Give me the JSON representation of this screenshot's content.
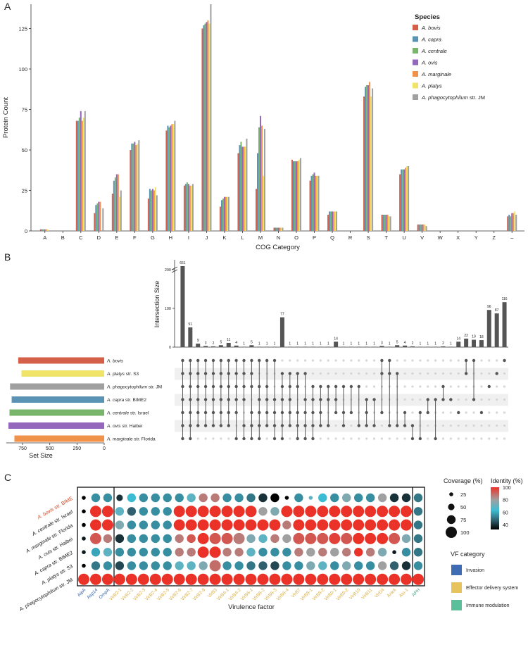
{
  "colors": {
    "species": [
      "#d5604a",
      "#5b93b4",
      "#79b56a",
      "#9467bd",
      "#f0924a",
      "#f0e36a",
      "#a0a0a0"
    ],
    "setbar": [
      "#d5604a",
      "#f0e36a",
      "#a0a0a0",
      "#5b93b4",
      "#79b56a",
      "#9467bd",
      "#f0924a"
    ],
    "vfcat": [
      "#3f6bb5",
      "#e6c35c",
      "#5bbf9a"
    ],
    "vfcat_label_colors": [
      "#3a66b0",
      "#d9b048",
      "#4aa88a"
    ],
    "highlight_red": "#d14a28"
  },
  "chart_data": [
    {
      "panel": "A",
      "type": "bar",
      "title": "",
      "xlabel": "COG Category",
      "ylabel": "Protein Count",
      "ylim": [
        0,
        140
      ],
      "yticks": [
        0,
        25,
        50,
        75,
        100,
        125
      ],
      "categories": [
        "A",
        "B",
        "C",
        "D",
        "E",
        "F",
        "G",
        "H",
        "I",
        "J",
        "K",
        "L",
        "M",
        "N",
        "O",
        "P",
        "Q",
        "R",
        "S",
        "T",
        "U",
        "V",
        "W",
        "X",
        "Y",
        "Z",
        "–"
      ],
      "legend_title": "Species",
      "series": [
        {
          "name": "A. bovis",
          "values": [
            1,
            0,
            68,
            11,
            23,
            50,
            20,
            62,
            28,
            125,
            15,
            48,
            26,
            2,
            44,
            31,
            10,
            0,
            83,
            10,
            35,
            4,
            0,
            0,
            0,
            0,
            9
          ]
        },
        {
          "name": "A. capra",
          "values": [
            1,
            0,
            68,
            16,
            31,
            54,
            26,
            65,
            29,
            127,
            19,
            53,
            48,
            2,
            43,
            34,
            12,
            0,
            89,
            10,
            38,
            4,
            0,
            0,
            0,
            0,
            10
          ]
        },
        {
          "name": "A. centrale",
          "values": [
            1,
            0,
            70,
            17,
            33,
            54,
            25,
            64,
            30,
            128,
            20,
            55,
            64,
            2,
            43,
            35,
            12,
            0,
            90,
            10,
            38,
            4,
            0,
            0,
            0,
            0,
            9
          ]
        },
        {
          "name": "A. ovis",
          "values": [
            1,
            0,
            74,
            18,
            35,
            55,
            26,
            65,
            29,
            129,
            21,
            52,
            71,
            2,
            43,
            36,
            12,
            0,
            90,
            10,
            38,
            4,
            0,
            0,
            0,
            0,
            11
          ]
        },
        {
          "name": "A. marginale",
          "values": [
            1,
            0,
            68,
            18,
            35,
            53,
            25,
            66,
            28,
            130,
            21,
            52,
            65,
            2,
            43,
            34,
            12,
            0,
            92,
            10,
            39,
            4,
            0,
            0,
            0,
            0,
            11
          ]
        },
        {
          "name": "A. platys",
          "values": [
            1,
            0,
            70,
            0,
            21,
            54,
            27,
            66,
            28,
            128,
            21,
            52,
            34,
            2,
            44,
            34,
            12,
            0,
            83,
            9,
            40,
            4,
            0,
            0,
            0,
            0,
            12
          ]
        },
        {
          "name": "A. phagocytophilum str. JM",
          "values": [
            0,
            0,
            74,
            14,
            25,
            56,
            22,
            68,
            29,
            140,
            21,
            57,
            63,
            2,
            45,
            34,
            12,
            0,
            88,
            9,
            40,
            3,
            0,
            0,
            0,
            0,
            10
          ]
        }
      ]
    },
    {
      "panel": "B",
      "type": "upset",
      "ylabel": "Intersection Size",
      "axis_break_label": "651",
      "yticks": [
        0,
        100,
        200
      ],
      "intersection_sizes": [
        651,
        51,
        9,
        3,
        2,
        5,
        11,
        4,
        1,
        5,
        1,
        1,
        1,
        77,
        1,
        1,
        1,
        1,
        1,
        1,
        14,
        1,
        1,
        1,
        1,
        1,
        3,
        1,
        5,
        4,
        2,
        1,
        1,
        1,
        2,
        1,
        14,
        22,
        19,
        18,
        96,
        87,
        116
      ],
      "set_names": [
        {
          "sp": "A. bovis",
          "str": ""
        },
        {
          "sp": "A. platys",
          "str": " str. S3"
        },
        {
          "sp": "A. phagocytophilum",
          "str": " str. JM"
        },
        {
          "sp": "A. capra",
          "str": " str. BIME2"
        },
        {
          "sp": "A. centrale",
          "str": " str. Israel"
        },
        {
          "sp": "A. ovis",
          "str": " str. Haibei"
        },
        {
          "sp": "A. marginale",
          "str": " str. Florida"
        }
      ],
      "set_sizes": [
        790,
        760,
        865,
        850,
        870,
        880,
        825
      ],
      "set_size_ticks": [
        750,
        500,
        250,
        0
      ],
      "set_size_label": "Set Size",
      "matrix": [
        [
          0,
          1,
          2,
          3,
          4,
          5,
          6
        ],
        [
          0,
          1,
          2,
          3,
          4,
          5,
          6
        ],
        [
          0,
          1,
          2,
          3,
          4,
          5
        ],
        [
          0,
          1,
          2,
          3,
          4,
          5
        ],
        [
          0,
          1,
          2,
          3,
          4,
          5
        ],
        [
          0,
          1,
          2,
          3,
          4,
          5
        ],
        [
          0,
          1,
          2,
          3,
          4,
          5
        ],
        [
          0,
          1,
          2,
          3,
          4,
          6
        ],
        [
          0,
          1,
          2,
          3,
          5,
          6
        ],
        [
          0,
          1,
          2,
          4,
          5,
          6
        ],
        [
          0,
          2,
          3,
          4,
          5,
          6
        ],
        [
          0,
          2,
          3,
          4,
          5
        ],
        [
          0,
          3,
          4,
          5,
          6
        ],
        [
          1,
          2,
          3,
          4,
          5,
          6
        ],
        [
          1,
          2,
          3,
          4,
          5
        ],
        [
          1,
          2,
          4,
          5,
          6
        ],
        [
          1,
          3,
          4,
          5,
          6
        ],
        [
          2,
          3,
          4,
          5,
          6
        ],
        [
          2,
          3,
          4,
          5
        ],
        [
          2,
          3,
          5
        ],
        [
          2,
          3,
          4
        ],
        [
          2,
          4,
          5
        ],
        [
          2,
          4
        ],
        [
          2,
          5
        ],
        [
          3,
          4,
          5
        ],
        [
          3,
          5
        ],
        [
          0,
          1,
          4
        ],
        [
          0,
          1,
          5
        ],
        [
          1,
          5
        ],
        [
          4,
          5
        ],
        [
          5,
          6
        ],
        [
          4,
          6
        ],
        [
          3,
          4
        ],
        [
          3,
          6
        ],
        [
          2,
          3
        ],
        [
          3
        ],
        [
          4
        ],
        [
          0,
          1
        ],
        [
          0,
          3
        ],
        [
          4
        ],
        [
          2
        ],
        [
          1
        ],
        [
          0
        ]
      ]
    },
    {
      "panel": "C",
      "type": "dotplot",
      "xlabel": "Virulence factor",
      "rows": [
        "A. bovis str. BIME",
        "A. centrale str. Israel",
        "A. marginale str. Florida",
        "A. ovis str. Haibei",
        "A. capra str. BIME2",
        "A. platys str. S3",
        "A. phagocytophilum str. JM"
      ],
      "columns": [
        "AipA",
        "Asp14",
        "OmpA",
        "VirB2-1",
        "VirB2-2",
        "VirB2-3",
        "VirB2-4",
        "VirB2-5",
        "VirB2-6",
        "VirB2-7",
        "VirB2-8",
        "VirB3",
        "VirB4-1",
        "VirB4-2",
        "VirB6-1",
        "VirB6-2",
        "VirB6-3",
        "VirB6-4",
        "VirB7",
        "VirB8-1",
        "VirB8-2",
        "VirB9-1",
        "VirB9-2",
        "VirB10",
        "VirB11",
        "VirD4",
        "AnkA",
        "Ats-1",
        "APH"
      ],
      "column_category": [
        0,
        0,
        0,
        1,
        1,
        1,
        1,
        1,
        1,
        1,
        1,
        1,
        1,
        1,
        1,
        1,
        1,
        1,
        1,
        1,
        1,
        1,
        1,
        1,
        1,
        1,
        1,
        1,
        2
      ],
      "coverage": [
        [
          25,
          75,
          75,
          50,
          75,
          75,
          75,
          75,
          75,
          75,
          75,
          75,
          75,
          75,
          75,
          75,
          75,
          25,
          75,
          25,
          75,
          75,
          75,
          75,
          75,
          75,
          75,
          75,
          75
        ],
        [
          25,
          100,
          100,
          75,
          75,
          75,
          75,
          75,
          100,
          100,
          100,
          100,
          100,
          100,
          100,
          75,
          75,
          100,
          100,
          100,
          100,
          100,
          100,
          100,
          100,
          100,
          100,
          100,
          75
        ],
        [
          25,
          100,
          100,
          75,
          75,
          75,
          75,
          75,
          100,
          100,
          100,
          100,
          100,
          100,
          100,
          100,
          100,
          75,
          100,
          100,
          100,
          100,
          100,
          100,
          100,
          100,
          100,
          100,
          75
        ],
        [
          25,
          100,
          75,
          75,
          75,
          75,
          75,
          75,
          75,
          75,
          100,
          100,
          100,
          100,
          75,
          75,
          75,
          75,
          100,
          100,
          100,
          100,
          100,
          100,
          100,
          100,
          100,
          75,
          75
        ],
        [
          25,
          75,
          75,
          75,
          75,
          75,
          75,
          75,
          75,
          75,
          100,
          100,
          75,
          75,
          75,
          75,
          75,
          75,
          75,
          75,
          75,
          75,
          75,
          75,
          75,
          75,
          25,
          75,
          75
        ],
        [
          25,
          75,
          75,
          75,
          75,
          75,
          75,
          75,
          75,
          75,
          75,
          100,
          75,
          75,
          75,
          75,
          75,
          75,
          75,
          75,
          75,
          75,
          75,
          75,
          75,
          75,
          75,
          75,
          75
        ],
        [
          100,
          100,
          100,
          100,
          100,
          100,
          100,
          100,
          100,
          100,
          100,
          100,
          100,
          100,
          100,
          100,
          100,
          100,
          100,
          100,
          100,
          100,
          100,
          100,
          100,
          100,
          100,
          100,
          100
        ]
      ],
      "identity": [
        [
          30,
          60,
          60,
          40,
          70,
          60,
          60,
          60,
          60,
          75,
          90,
          90,
          60,
          60,
          55,
          40,
          30,
          30,
          60,
          75,
          70,
          60,
          80,
          60,
          60,
          85,
          40,
          40,
          55
        ],
        [
          30,
          100,
          100,
          75,
          50,
          60,
          60,
          60,
          100,
          100,
          100,
          100,
          100,
          100,
          100,
          85,
          80,
          100,
          100,
          100,
          100,
          100,
          100,
          100,
          100,
          100,
          100,
          100,
          55
        ],
        [
          30,
          100,
          100,
          80,
          60,
          60,
          60,
          60,
          100,
          100,
          100,
          100,
          100,
          100,
          100,
          100,
          100,
          90,
          100,
          100,
          100,
          100,
          100,
          100,
          100,
          100,
          100,
          100,
          55
        ],
        [
          35,
          95,
          90,
          40,
          60,
          60,
          60,
          60,
          90,
          95,
          100,
          95,
          95,
          90,
          80,
          75,
          90,
          85,
          95,
          95,
          95,
          98,
          95,
          100,
          100,
          100,
          95,
          80,
          55
        ],
        [
          35,
          65,
          75,
          60,
          60,
          60,
          60,
          60,
          90,
          90,
          100,
          100,
          90,
          90,
          75,
          60,
          60,
          60,
          90,
          85,
          90,
          85,
          90,
          100,
          90,
          80,
          35,
          60,
          55
        ],
        [
          30,
          55,
          60,
          45,
          60,
          60,
          60,
          60,
          75,
          75,
          80,
          92,
          60,
          60,
          55,
          50,
          45,
          60,
          60,
          80,
          75,
          60,
          80,
          60,
          60,
          85,
          50,
          40,
          60
        ]
      ],
      "identity_row7": 100,
      "coverage_legend": {
        "title": "Coverage (%)",
        "values": [
          25,
          50,
          75,
          100
        ]
      },
      "identity_legend": {
        "title": "Identity (%)",
        "ticks": [
          100,
          80,
          60,
          40
        ]
      },
      "category_legend": {
        "title": "VF category",
        "items": [
          "Invasion",
          "Effector delivery system",
          "Immune modulation"
        ]
      }
    }
  ],
  "panel_labels": {
    "a": "A",
    "b": "B",
    "c": "C"
  }
}
